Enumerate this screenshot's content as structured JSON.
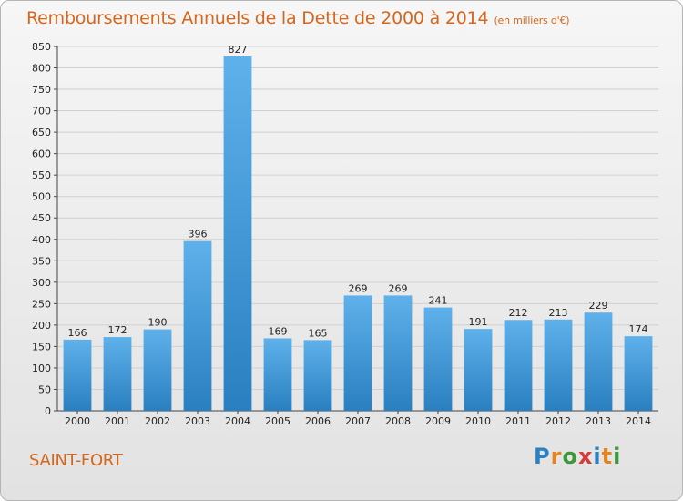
{
  "header": {
    "title": "Remboursements Annuels de la Dette de 2000 à 2014",
    "subtitle": "(en milliers d'€)"
  },
  "footer": {
    "commune": "SAINT-FORT",
    "logo_letters": [
      "P",
      "r",
      "o",
      "x",
      "i",
      "t",
      "i"
    ]
  },
  "colors": {
    "title": "#d4671d",
    "bar_top": "#5eb1ea",
    "bar_bottom": "#2a7fc0",
    "grid": "#d0d0d0",
    "logo": [
      "#2b7fc3",
      "#e5841f",
      "#3a9a3a",
      "#d63a3a",
      "#2b7fc3",
      "#e5841f",
      "#3a9a3a"
    ]
  },
  "chart_data": {
    "type": "bar",
    "title": "Remboursements Annuels de la Dette de 2000 à 2014",
    "subtitle": "(en milliers d'€)",
    "xlabel": "",
    "ylabel": "",
    "categories": [
      "2000",
      "2001",
      "2002",
      "2003",
      "2004",
      "2005",
      "2006",
      "2007",
      "2008",
      "2009",
      "2010",
      "2011",
      "2012",
      "2013",
      "2014"
    ],
    "values": [
      166,
      172,
      190,
      396,
      827,
      169,
      165,
      269,
      269,
      241,
      191,
      212,
      213,
      229,
      174
    ],
    "ylim": [
      0,
      850
    ],
    "yticks": [
      0,
      50,
      100,
      150,
      200,
      250,
      300,
      350,
      400,
      450,
      500,
      550,
      600,
      650,
      700,
      750,
      800,
      850
    ],
    "grid": true,
    "legend": "none",
    "data_labels": true
  }
}
